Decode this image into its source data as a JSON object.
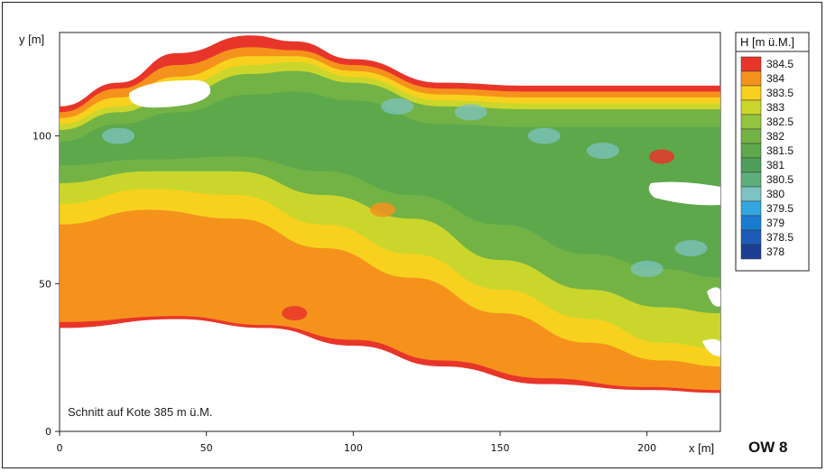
{
  "chart_data": {
    "type": "heatmap",
    "title": "",
    "xlabel": "x [m]",
    "ylabel": "y [m]",
    "xlim": [
      0,
      225
    ],
    "ylim": [
      0,
      135
    ],
    "x_ticks": [
      "0",
      "50",
      "100",
      "150",
      "200"
    ],
    "y_ticks": [
      "0",
      "50",
      "100"
    ],
    "x_tick_values": [
      0,
      50,
      100,
      150,
      200
    ],
    "y_tick_values": [
      0,
      50,
      100
    ],
    "grid": false,
    "legend_position": "right",
    "legend": {
      "title": "H [m ü.M.]",
      "levels": [
        {
          "label": "384.5",
          "color": "#e8352a"
        },
        {
          "label": "384",
          "color": "#f5921c"
        },
        {
          "label": "383.5",
          "color": "#f7d11e"
        },
        {
          "label": "383",
          "color": "#cbd62c"
        },
        {
          "label": "382.5",
          "color": "#93c43f"
        },
        {
          "label": "382",
          "color": "#73b346"
        },
        {
          "label": "381.5",
          "color": "#5ea84c"
        },
        {
          "label": "381",
          "color": "#4f9f5b"
        },
        {
          "label": "380.5",
          "color": "#5fae7e"
        },
        {
          "label": "380",
          "color": "#7cc3c2"
        },
        {
          "label": "379.5",
          "color": "#33a6e0"
        },
        {
          "label": "379",
          "color": "#1a7cd0"
        },
        {
          "label": "378.5",
          "color": "#1d5cb6"
        },
        {
          "label": "378",
          "color": "#1c3f94"
        }
      ]
    },
    "annotation": "Schnitt auf Kote 385 m ü.M.",
    "contour_bands": [
      {
        "level": "384.5",
        "color": "#e8352a",
        "top": [
          [
            0,
            110
          ],
          [
            20,
            118
          ],
          [
            40,
            128
          ],
          [
            65,
            134
          ],
          [
            80,
            132
          ],
          [
            100,
            126
          ],
          [
            130,
            118
          ],
          [
            160,
            117
          ],
          [
            190,
            117
          ],
          [
            225,
            117
          ]
        ],
        "bottom": [
          [
            0,
            35
          ],
          [
            40,
            38
          ],
          [
            70,
            35
          ],
          [
            100,
            29
          ],
          [
            130,
            22
          ],
          [
            165,
            16
          ],
          [
            200,
            14
          ],
          [
            225,
            13
          ]
        ]
      },
      {
        "level": "384",
        "color": "#f5921c",
        "top": [
          [
            0,
            108
          ],
          [
            20,
            116
          ],
          [
            40,
            124
          ],
          [
            65,
            130
          ],
          [
            80,
            129
          ],
          [
            100,
            124
          ],
          [
            130,
            116
          ],
          [
            160,
            115
          ],
          [
            190,
            115
          ],
          [
            225,
            115
          ]
        ],
        "bottom": [
          [
            0,
            37
          ],
          [
            40,
            39
          ],
          [
            70,
            36
          ],
          [
            100,
            31
          ],
          [
            130,
            24
          ],
          [
            165,
            18
          ],
          [
            200,
            15
          ],
          [
            225,
            14
          ]
        ]
      },
      {
        "level": "383.5",
        "color": "#f7d11e",
        "top": [
          [
            0,
            106
          ],
          [
            20,
            113
          ],
          [
            40,
            120
          ],
          [
            65,
            127
          ],
          [
            80,
            127
          ],
          [
            100,
            122
          ],
          [
            130,
            114
          ],
          [
            160,
            113
          ],
          [
            190,
            113
          ],
          [
            225,
            113
          ]
        ],
        "bottom": [
          [
            0,
            70
          ],
          [
            30,
            75
          ],
          [
            60,
            72
          ],
          [
            90,
            62
          ],
          [
            120,
            52
          ],
          [
            150,
            40
          ],
          [
            180,
            30
          ],
          [
            205,
            24
          ],
          [
            225,
            22
          ]
        ]
      },
      {
        "level": "383",
        "color": "#cbd62c",
        "top": [
          [
            0,
            104
          ],
          [
            20,
            110
          ],
          [
            40,
            117
          ],
          [
            65,
            124
          ],
          [
            80,
            125
          ],
          [
            100,
            120
          ],
          [
            130,
            112
          ],
          [
            160,
            111
          ],
          [
            190,
            111
          ],
          [
            225,
            111
          ]
        ],
        "bottom": [
          [
            0,
            77
          ],
          [
            30,
            82
          ],
          [
            60,
            80
          ],
          [
            90,
            70
          ],
          [
            120,
            60
          ],
          [
            150,
            48
          ],
          [
            180,
            38
          ],
          [
            205,
            30
          ],
          [
            225,
            28
          ]
        ]
      },
      {
        "level": "382",
        "color": "#73b346",
        "top": [
          [
            0,
            102
          ],
          [
            20,
            108
          ],
          [
            40,
            114
          ],
          [
            65,
            121
          ],
          [
            80,
            122
          ],
          [
            100,
            118
          ],
          [
            130,
            110
          ],
          [
            160,
            109
          ],
          [
            190,
            109
          ],
          [
            225,
            109
          ]
        ],
        "bottom": [
          [
            0,
            84
          ],
          [
            30,
            88
          ],
          [
            60,
            88
          ],
          [
            90,
            80
          ],
          [
            120,
            72
          ],
          [
            150,
            58
          ],
          [
            180,
            48
          ],
          [
            205,
            42
          ],
          [
            225,
            40
          ]
        ]
      },
      {
        "level": "381.5",
        "color": "#5ea84c",
        "top": [
          [
            0,
            98
          ],
          [
            20,
            104
          ],
          [
            40,
            108
          ],
          [
            65,
            114
          ],
          [
            80,
            115
          ],
          [
            100,
            112
          ],
          [
            130,
            104
          ],
          [
            160,
            103
          ],
          [
            190,
            103
          ],
          [
            225,
            103
          ]
        ],
        "bottom": [
          [
            0,
            90
          ],
          [
            30,
            92
          ],
          [
            60,
            93
          ],
          [
            90,
            88
          ],
          [
            120,
            80
          ],
          [
            150,
            70
          ],
          [
            180,
            60
          ],
          [
            205,
            55
          ],
          [
            225,
            52
          ]
        ]
      }
    ],
    "highs": [
      {
        "level": "384",
        "color": "#f5921c",
        "x": 110,
        "y": 75
      },
      {
        "level": "384.5",
        "color": "#e8352a",
        "x": 205,
        "y": 93
      },
      {
        "level": "384.5",
        "color": "#e8352a",
        "x": 80,
        "y": 40
      }
    ],
    "lows": [
      {
        "level": "380",
        "color": "#7cc3c2",
        "x": 20,
        "y": 100
      },
      {
        "level": "380",
        "color": "#7cc3c2",
        "x": 115,
        "y": 110
      },
      {
        "level": "380",
        "color": "#7cc3c2",
        "x": 140,
        "y": 108
      },
      {
        "level": "380",
        "color": "#7cc3c2",
        "x": 165,
        "y": 100
      },
      {
        "level": "380",
        "color": "#7cc3c2",
        "x": 185,
        "y": 95
      },
      {
        "level": "380",
        "color": "#7cc3c2",
        "x": 200,
        "y": 55
      },
      {
        "level": "380",
        "color": "#7cc3c2",
        "x": 215,
        "y": 62
      }
    ]
  },
  "figure_code": "OW 8"
}
